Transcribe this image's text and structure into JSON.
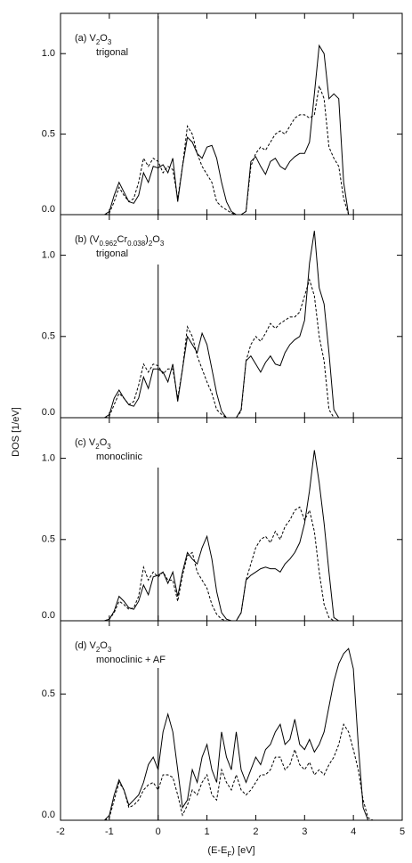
{
  "chart_data": [
    {
      "type": "line",
      "label_parts": [
        {
          "text": "(a) V"
        },
        {
          "text": "2",
          "sub": true
        },
        {
          "text": "O"
        },
        {
          "text": "3",
          "sub": true
        }
      ],
      "sublabel": "trigonal",
      "xlim": [
        -2,
        5
      ],
      "ylim": [
        0,
        1.25
      ],
      "xticks": [
        -2,
        -1,
        0,
        1,
        2,
        3,
        4,
        5
      ],
      "yticks": [
        {
          "value": 0,
          "label": "0.0"
        },
        {
          "value": 0.5,
          "label": "0.5"
        },
        {
          "value": 1,
          "label": "1.0"
        }
      ],
      "vline": 0,
      "x": [
        -1.1,
        -1.0,
        -0.9,
        -0.8,
        -0.7,
        -0.6,
        -0.5,
        -0.4,
        -0.3,
        -0.2,
        -0.1,
        0,
        0.1,
        0.2,
        0.3,
        0.4,
        0.5,
        0.6,
        0.7,
        0.8,
        0.9,
        1.0,
        1.1,
        1.2,
        1.3,
        1.4,
        1.5,
        1.6,
        1.7,
        1.8,
        1.9,
        2.0,
        2.1,
        2.2,
        2.3,
        2.4,
        2.5,
        2.6,
        2.7,
        2.8,
        2.9,
        3.0,
        3.1,
        3.2,
        3.3,
        3.4,
        3.5,
        3.6,
        3.7,
        3.8,
        3.9,
        4.0,
        4.1,
        4.2,
        4.3,
        4.4
      ],
      "series": [
        {
          "color": "#000000",
          "dash": false,
          "values": [
            0,
            0.02,
            0.12,
            0.2,
            0.14,
            0.08,
            0.07,
            0.12,
            0.26,
            0.2,
            0.3,
            0.29,
            0.31,
            0.26,
            0.35,
            0.08,
            0.3,
            0.48,
            0.45,
            0.38,
            0.35,
            0.42,
            0.43,
            0.35,
            0.2,
            0.08,
            0.02,
            0,
            0,
            0.02,
            0.33,
            0.36,
            0.3,
            0.25,
            0.33,
            0.35,
            0.3,
            0.28,
            0.33,
            0.36,
            0.38,
            0.38,
            0.45,
            0.75,
            1.05,
            1.0,
            0.72,
            0.75,
            0.72,
            0.2,
            0,
            0,
            0,
            0,
            0,
            0
          ]
        },
        {
          "color": "#000000",
          "dash": true,
          "values": [
            0,
            0.01,
            0.08,
            0.17,
            0.12,
            0.08,
            0.1,
            0.2,
            0.35,
            0.3,
            0.35,
            0.33,
            0.26,
            0.3,
            0.28,
            0.1,
            0.3,
            0.55,
            0.5,
            0.38,
            0.3,
            0.25,
            0.2,
            0.08,
            0.05,
            0.03,
            0.01,
            0,
            0,
            0.02,
            0.3,
            0.38,
            0.42,
            0.4,
            0.45,
            0.5,
            0.52,
            0.5,
            0.55,
            0.6,
            0.62,
            0.62,
            0.6,
            0.62,
            0.8,
            0.72,
            0.42,
            0.35,
            0.3,
            0.1,
            0,
            0,
            0,
            0,
            0,
            0
          ]
        }
      ]
    },
    {
      "type": "line",
      "label_parts": [
        {
          "text": "(b) (V"
        },
        {
          "text": "0.962",
          "sub": true
        },
        {
          "text": "Cr"
        },
        {
          "text": "0.038",
          "sub": true
        },
        {
          "text": ")"
        },
        {
          "text": "2",
          "sub": true
        },
        {
          "text": "O"
        },
        {
          "text": "3",
          "sub": true
        }
      ],
      "sublabel": "trigonal",
      "xlim": [
        -2,
        5
      ],
      "ylim": [
        0,
        1.25
      ],
      "xticks": [
        -2,
        -1,
        0,
        1,
        2,
        3,
        4,
        5
      ],
      "yticks": [
        {
          "value": 0,
          "label": "0.0"
        },
        {
          "value": 0.5,
          "label": "0.5"
        },
        {
          "value": 1,
          "label": "1.0"
        }
      ],
      "vline": 0,
      "x": [
        -1.1,
        -1.0,
        -0.9,
        -0.8,
        -0.7,
        -0.6,
        -0.5,
        -0.4,
        -0.3,
        -0.2,
        -0.1,
        0,
        0.1,
        0.2,
        0.3,
        0.4,
        0.5,
        0.6,
        0.7,
        0.8,
        0.9,
        1.0,
        1.1,
        1.2,
        1.3,
        1.4,
        1.5,
        1.6,
        1.7,
        1.8,
        1.9,
        2.0,
        2.1,
        2.2,
        2.3,
        2.4,
        2.5,
        2.6,
        2.7,
        2.8,
        2.9,
        3.0,
        3.1,
        3.2,
        3.3,
        3.4,
        3.5,
        3.6,
        3.7,
        3.8,
        3.9,
        4.0,
        4.1,
        4.2,
        4.3,
        4.4
      ],
      "series": [
        {
          "color": "#000000",
          "dash": false,
          "values": [
            0,
            0.02,
            0.12,
            0.17,
            0.12,
            0.08,
            0.07,
            0.12,
            0.25,
            0.18,
            0.3,
            0.3,
            0.28,
            0.22,
            0.33,
            0.1,
            0.3,
            0.5,
            0.45,
            0.4,
            0.52,
            0.45,
            0.3,
            0.15,
            0.04,
            0,
            0,
            0,
            0.05,
            0.35,
            0.38,
            0.33,
            0.28,
            0.34,
            0.38,
            0.33,
            0.32,
            0.4,
            0.45,
            0.48,
            0.5,
            0.6,
            0.95,
            1.15,
            0.8,
            0.7,
            0.4,
            0.05,
            0,
            0,
            0,
            0,
            0,
            0,
            0,
            0
          ]
        },
        {
          "color": "#000000",
          "dash": true,
          "values": [
            0,
            0.01,
            0.08,
            0.15,
            0.12,
            0.08,
            0.1,
            0.2,
            0.33,
            0.28,
            0.33,
            0.32,
            0.27,
            0.3,
            0.3,
            0.12,
            0.3,
            0.56,
            0.5,
            0.38,
            0.3,
            0.22,
            0.15,
            0.05,
            0.02,
            0,
            0,
            0,
            0.04,
            0.35,
            0.45,
            0.5,
            0.47,
            0.52,
            0.58,
            0.55,
            0.58,
            0.6,
            0.62,
            0.62,
            0.65,
            0.75,
            0.85,
            0.75,
            0.5,
            0.35,
            0.05,
            0,
            0,
            0,
            0,
            0,
            0,
            0,
            0,
            0
          ]
        }
      ]
    },
    {
      "type": "line",
      "label_parts": [
        {
          "text": "(c) V"
        },
        {
          "text": "2",
          "sub": true
        },
        {
          "text": "O"
        },
        {
          "text": "3",
          "sub": true
        }
      ],
      "sublabel": "monoclinic",
      "ylabel": "DOS [1/eV]",
      "xlim": [
        -2,
        5
      ],
      "ylim": [
        0,
        1.25
      ],
      "xticks": [
        -2,
        -1,
        0,
        1,
        2,
        3,
        4,
        5
      ],
      "yticks": [
        {
          "value": 0,
          "label": "0.0"
        },
        {
          "value": 0.5,
          "label": "0.5"
        },
        {
          "value": 1,
          "label": "1.0"
        }
      ],
      "vline": 0,
      "x": [
        -1.1,
        -1.0,
        -0.9,
        -0.8,
        -0.7,
        -0.6,
        -0.5,
        -0.4,
        -0.3,
        -0.2,
        -0.1,
        0,
        0.1,
        0.2,
        0.3,
        0.4,
        0.5,
        0.6,
        0.7,
        0.8,
        0.9,
        1.0,
        1.1,
        1.2,
        1.3,
        1.4,
        1.5,
        1.6,
        1.7,
        1.8,
        1.9,
        2.0,
        2.1,
        2.2,
        2.3,
        2.4,
        2.5,
        2.6,
        2.7,
        2.8,
        2.9,
        3.0,
        3.1,
        3.2,
        3.3,
        3.4,
        3.5,
        3.6,
        3.7,
        3.8,
        3.9,
        4.0,
        4.1,
        4.2,
        4.3,
        4.4
      ],
      "series": [
        {
          "color": "#000000",
          "dash": false,
          "values": [
            0,
            0.01,
            0.06,
            0.15,
            0.12,
            0.08,
            0.07,
            0.12,
            0.22,
            0.16,
            0.27,
            0.28,
            0.3,
            0.23,
            0.3,
            0.15,
            0.3,
            0.42,
            0.38,
            0.35,
            0.45,
            0.52,
            0.38,
            0.18,
            0.05,
            0.01,
            0,
            0,
            0.05,
            0.25,
            0.28,
            0.3,
            0.32,
            0.33,
            0.32,
            0.32,
            0.3,
            0.35,
            0.38,
            0.42,
            0.48,
            0.6,
            0.8,
            1.05,
            0.85,
            0.6,
            0.3,
            0.02,
            0,
            0,
            0,
            0,
            0,
            0,
            0,
            0
          ]
        },
        {
          "color": "#000000",
          "dash": true,
          "values": [
            0,
            0.01,
            0.05,
            0.12,
            0.1,
            0.07,
            0.08,
            0.15,
            0.33,
            0.25,
            0.3,
            0.27,
            0.3,
            0.25,
            0.25,
            0.12,
            0.28,
            0.4,
            0.42,
            0.3,
            0.25,
            0.2,
            0.1,
            0.04,
            0.01,
            0,
            0,
            0,
            0.05,
            0.25,
            0.35,
            0.45,
            0.5,
            0.52,
            0.48,
            0.55,
            0.5,
            0.58,
            0.62,
            0.68,
            0.7,
            0.62,
            0.68,
            0.55,
            0.3,
            0.1,
            0.02,
            0,
            0,
            0,
            0,
            0,
            0,
            0,
            0,
            0
          ]
        }
      ]
    },
    {
      "type": "line",
      "label_parts": [
        {
          "text": "(d) V"
        },
        {
          "text": "2",
          "sub": true
        },
        {
          "text": "O"
        },
        {
          "text": "3",
          "sub": true
        }
      ],
      "sublabel": "monoclinic + AF",
      "xlabel_parts": [
        {
          "text": "(E-E"
        },
        {
          "text": "F",
          "sub": true
        },
        {
          "text": ") [eV]"
        }
      ],
      "xlim": [
        -2,
        5
      ],
      "ylim": [
        0,
        0.79
      ],
      "xticks": [
        -2,
        -1,
        0,
        1,
        2,
        3,
        4,
        5
      ],
      "xticklabels": true,
      "yticks": [
        {
          "value": 0,
          "label": "0.0"
        },
        {
          "value": 0.5,
          "label": "0.5"
        }
      ],
      "vline": 0,
      "x": [
        -1.1,
        -1.0,
        -0.9,
        -0.8,
        -0.7,
        -0.6,
        -0.5,
        -0.4,
        -0.3,
        -0.2,
        -0.1,
        0,
        0.1,
        0.2,
        0.3,
        0.4,
        0.5,
        0.6,
        0.7,
        0.8,
        0.9,
        1.0,
        1.1,
        1.2,
        1.3,
        1.4,
        1.5,
        1.6,
        1.7,
        1.8,
        1.9,
        2.0,
        2.1,
        2.2,
        2.3,
        2.4,
        2.5,
        2.6,
        2.7,
        2.8,
        2.9,
        3.0,
        3.1,
        3.2,
        3.3,
        3.4,
        3.5,
        3.6,
        3.7,
        3.8,
        3.9,
        4.0,
        4.1,
        4.2,
        4.3,
        4.4
      ],
      "series": [
        {
          "color": "#000000",
          "dash": false,
          "values": [
            0,
            0.02,
            0.1,
            0.16,
            0.12,
            0.06,
            0.08,
            0.1,
            0.15,
            0.22,
            0.25,
            0.2,
            0.35,
            0.42,
            0.35,
            0.2,
            0.05,
            0.08,
            0.2,
            0.15,
            0.25,
            0.3,
            0.2,
            0.15,
            0.35,
            0.25,
            0.2,
            0.35,
            0.2,
            0.15,
            0.2,
            0.25,
            0.22,
            0.28,
            0.3,
            0.35,
            0.38,
            0.3,
            0.32,
            0.4,
            0.3,
            0.28,
            0.32,
            0.27,
            0.3,
            0.35,
            0.45,
            0.55,
            0.62,
            0.66,
            0.68,
            0.6,
            0.3,
            0.05,
            0,
            0
          ]
        },
        {
          "color": "#000000",
          "dash": true,
          "values": [
            0,
            0.01,
            0.08,
            0.15,
            0.12,
            0.05,
            0.06,
            0.08,
            0.12,
            0.14,
            0.15,
            0.12,
            0.18,
            0.18,
            0.17,
            0.1,
            0.02,
            0.06,
            0.12,
            0.1,
            0.15,
            0.18,
            0.1,
            0.08,
            0.2,
            0.15,
            0.12,
            0.18,
            0.12,
            0.1,
            0.12,
            0.15,
            0.18,
            0.18,
            0.2,
            0.25,
            0.25,
            0.2,
            0.22,
            0.28,
            0.22,
            0.2,
            0.23,
            0.18,
            0.2,
            0.18,
            0.22,
            0.25,
            0.3,
            0.38,
            0.35,
            0.28,
            0.2,
            0.08,
            0.01,
            0
          ]
        }
      ]
    }
  ]
}
